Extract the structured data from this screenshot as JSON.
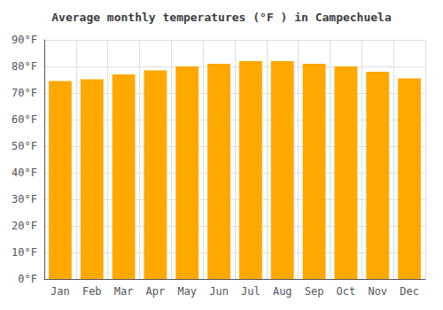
{
  "chart_data": {
    "type": "bar",
    "title": "Average monthly temperatures (°F ) in Campechuela",
    "categories": [
      "Jan",
      "Feb",
      "Mar",
      "Apr",
      "May",
      "Jun",
      "Jul",
      "Aug",
      "Sep",
      "Oct",
      "Nov",
      "Dec"
    ],
    "values": [
      74.5,
      75.2,
      77.0,
      78.5,
      80.0,
      81.0,
      82.0,
      82.0,
      81.0,
      80.0,
      78.0,
      75.5
    ],
    "color": "#FFA800",
    "ylim": [
      0,
      90
    ],
    "yticks": [
      {
        "value": 0,
        "label": "0°F"
      },
      {
        "value": 10,
        "label": "10°F"
      },
      {
        "value": 20,
        "label": "20°F"
      },
      {
        "value": 30,
        "label": "30°F"
      },
      {
        "value": 40,
        "label": "40°F"
      },
      {
        "value": 50,
        "label": "50°F"
      },
      {
        "value": 60,
        "label": "60°F"
      },
      {
        "value": 70,
        "label": "70°F"
      },
      {
        "value": 80,
        "label": "80°F"
      },
      {
        "value": 90,
        "label": "90°F"
      }
    ],
    "grid": true
  }
}
